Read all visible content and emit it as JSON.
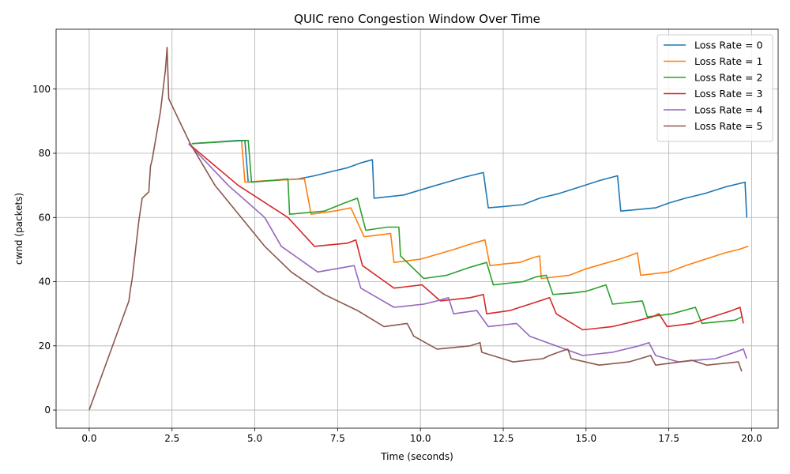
{
  "chart_data": {
    "type": "line",
    "title": "QUIC reno Congestion Window Over Time",
    "xlabel": "Time (seconds)",
    "ylabel": "cwnd (packets)",
    "xlim": [
      -1,
      20.8
    ],
    "ylim": [
      -5.65,
      118.65
    ],
    "xticks": [
      0.0,
      2.5,
      5.0,
      7.5,
      10.0,
      12.5,
      15.0,
      17.5,
      20.0
    ],
    "xtick_labels": [
      "0.0",
      "2.5",
      "5.0",
      "7.5",
      "10.0",
      "12.5",
      "15.0",
      "17.5",
      "20.0"
    ],
    "yticks": [
      0,
      20,
      40,
      60,
      80,
      100
    ],
    "ytick_labels": [
      "0",
      "20",
      "40",
      "60",
      "80",
      "100"
    ],
    "grid": true,
    "legend_position": "top-right",
    "series": [
      {
        "name": "Loss Rate = 0",
        "color": "#1f77b4",
        "points": [
          [
            3.1,
            83
          ],
          [
            4.5,
            84
          ],
          [
            4.7,
            84
          ],
          [
            4.8,
            71
          ],
          [
            5.5,
            71.5
          ],
          [
            6.3,
            72
          ],
          [
            6.8,
            73
          ],
          [
            7.2,
            74
          ],
          [
            7.8,
            75.5
          ],
          [
            8.2,
            77
          ],
          [
            8.55,
            78
          ],
          [
            8.6,
            66
          ],
          [
            9.5,
            67
          ],
          [
            10.3,
            69.5
          ],
          [
            10.8,
            71
          ],
          [
            11.3,
            72.5
          ],
          [
            11.9,
            74
          ],
          [
            12.05,
            63
          ],
          [
            12.6,
            63.5
          ],
          [
            13.1,
            64
          ],
          [
            13.6,
            66
          ],
          [
            14.2,
            67.5
          ],
          [
            14.8,
            69.5
          ],
          [
            15.4,
            71.5
          ],
          [
            15.95,
            73
          ],
          [
            16.05,
            62
          ],
          [
            16.6,
            62.5
          ],
          [
            17.1,
            63
          ],
          [
            17.5,
            64.5
          ],
          [
            18,
            66
          ],
          [
            18.6,
            67.5
          ],
          [
            19.2,
            69.5
          ],
          [
            19.8,
            71
          ],
          [
            19.85,
            60
          ]
        ]
      },
      {
        "name": "Loss Rate = 1",
        "color": "#ff7f0e",
        "points": [
          [
            4.6,
            84
          ],
          [
            4.7,
            71
          ],
          [
            5.4,
            71.5
          ],
          [
            6.5,
            72
          ],
          [
            6.7,
            61
          ],
          [
            7.4,
            62
          ],
          [
            7.9,
            63
          ],
          [
            8.3,
            54
          ],
          [
            9.1,
            55
          ],
          [
            9.2,
            46
          ],
          [
            10,
            47
          ],
          [
            10.5,
            48.5
          ],
          [
            11,
            50
          ],
          [
            11.6,
            52
          ],
          [
            11.95,
            53
          ],
          [
            12.1,
            45
          ],
          [
            12.5,
            45.5
          ],
          [
            13,
            46
          ],
          [
            13.4,
            47.5
          ],
          [
            13.6,
            48
          ],
          [
            13.65,
            41
          ],
          [
            14.5,
            42
          ],
          [
            15,
            44
          ],
          [
            15.5,
            45.5
          ],
          [
            16,
            47
          ],
          [
            16.3,
            48
          ],
          [
            16.55,
            49
          ],
          [
            16.65,
            42
          ],
          [
            17.5,
            43
          ],
          [
            18,
            45
          ],
          [
            18.6,
            47
          ],
          [
            19.2,
            49
          ],
          [
            19.6,
            50
          ],
          [
            19.9,
            51
          ]
        ]
      },
      {
        "name": "Loss Rate = 2",
        "color": "#2ca02c",
        "points": [
          [
            3.1,
            83
          ],
          [
            4.7,
            84
          ],
          [
            4.8,
            84
          ],
          [
            4.9,
            71
          ],
          [
            5.5,
            71.5
          ],
          [
            6,
            72
          ],
          [
            6.05,
            61
          ],
          [
            7.1,
            62
          ],
          [
            7.7,
            64.5
          ],
          [
            8.1,
            66
          ],
          [
            8.35,
            56
          ],
          [
            9,
            57
          ],
          [
            9.35,
            57
          ],
          [
            9.4,
            48
          ],
          [
            9.7,
            45
          ],
          [
            10.1,
            41
          ],
          [
            10.8,
            42
          ],
          [
            11.5,
            44.5
          ],
          [
            12,
            46
          ],
          [
            12.2,
            39
          ],
          [
            13.1,
            40
          ],
          [
            13.5,
            41.5
          ],
          [
            13.8,
            42
          ],
          [
            14,
            36
          ],
          [
            14.6,
            36.5
          ],
          [
            15,
            37
          ],
          [
            15.3,
            38
          ],
          [
            15.6,
            39
          ],
          [
            15.8,
            33
          ],
          [
            16.7,
            34
          ],
          [
            16.85,
            29
          ],
          [
            17.6,
            30
          ],
          [
            18.3,
            32
          ],
          [
            18.5,
            27
          ],
          [
            19.5,
            28
          ],
          [
            19.7,
            29
          ]
        ]
      },
      {
        "name": "Loss Rate = 3",
        "color": "#d62728",
        "points": [
          [
            3,
            83
          ],
          [
            4.5,
            70
          ],
          [
            6,
            60
          ],
          [
            6.8,
            51
          ],
          [
            7.8,
            52
          ],
          [
            8.05,
            53
          ],
          [
            8.25,
            45
          ],
          [
            9,
            39.5
          ],
          [
            9.2,
            38
          ],
          [
            10.05,
            39
          ],
          [
            10.6,
            34
          ],
          [
            11.5,
            35
          ],
          [
            11.9,
            36
          ],
          [
            12,
            30
          ],
          [
            12.7,
            31
          ],
          [
            13,
            32
          ],
          [
            13.3,
            33
          ],
          [
            13.6,
            34
          ],
          [
            13.9,
            35
          ],
          [
            14.1,
            30
          ],
          [
            14.9,
            25
          ],
          [
            15.8,
            26
          ],
          [
            16.6,
            28
          ],
          [
            17,
            29
          ],
          [
            17.2,
            30
          ],
          [
            17.45,
            26
          ],
          [
            18.2,
            27
          ],
          [
            18.8,
            29
          ],
          [
            19.1,
            30
          ],
          [
            19.4,
            31
          ],
          [
            19.65,
            32
          ],
          [
            19.75,
            27
          ]
        ]
      },
      {
        "name": "Loss Rate = 4",
        "color": "#9467bd",
        "points": [
          [
            3,
            83
          ],
          [
            4.2,
            70
          ],
          [
            5.3,
            60
          ],
          [
            5.8,
            51
          ],
          [
            6.9,
            43
          ],
          [
            8,
            45
          ],
          [
            8.2,
            38
          ],
          [
            9.2,
            32
          ],
          [
            10.1,
            33
          ],
          [
            10.5,
            34
          ],
          [
            10.85,
            35
          ],
          [
            11,
            30
          ],
          [
            11.7,
            31
          ],
          [
            12.05,
            26
          ],
          [
            12.9,
            27
          ],
          [
            13.3,
            23
          ],
          [
            14.9,
            17
          ],
          [
            15.8,
            18
          ],
          [
            16.6,
            20
          ],
          [
            16.9,
            21
          ],
          [
            17.1,
            17
          ],
          [
            17.8,
            15
          ],
          [
            18.3,
            15.5
          ],
          [
            18.9,
            16
          ],
          [
            19.2,
            17
          ],
          [
            19.5,
            18
          ],
          [
            19.75,
            19
          ],
          [
            19.85,
            16
          ]
        ]
      },
      {
        "name": "Loss Rate = 5",
        "color": "#8c564b",
        "points": [
          [
            0,
            0
          ],
          [
            1.2,
            34
          ],
          [
            1.25,
            38
          ],
          [
            1.3,
            41
          ],
          [
            1.5,
            59
          ],
          [
            1.6,
            66
          ],
          [
            1.8,
            68
          ],
          [
            1.85,
            76
          ],
          [
            1.9,
            78
          ],
          [
            2.15,
            93
          ],
          [
            2.3,
            106
          ],
          [
            2.35,
            113
          ],
          [
            2.4,
            97
          ],
          [
            3.05,
            83
          ],
          [
            3.8,
            70
          ],
          [
            5.3,
            51
          ],
          [
            6.1,
            43
          ],
          [
            7.1,
            36
          ],
          [
            8.1,
            31
          ],
          [
            8.9,
            26
          ],
          [
            9.6,
            27
          ],
          [
            9.8,
            23
          ],
          [
            10.5,
            19
          ],
          [
            11.5,
            20
          ],
          [
            11.8,
            21
          ],
          [
            11.85,
            18
          ],
          [
            12.8,
            15
          ],
          [
            13.7,
            16
          ],
          [
            13.9,
            17
          ],
          [
            14.3,
            18.5
          ],
          [
            14.45,
            19
          ],
          [
            14.55,
            16
          ],
          [
            15.4,
            14
          ],
          [
            16.3,
            15
          ],
          [
            16.95,
            17
          ],
          [
            17.1,
            14
          ],
          [
            18.2,
            15.5
          ],
          [
            18.65,
            14
          ],
          [
            19.6,
            15
          ],
          [
            19.7,
            12
          ]
        ]
      }
    ]
  }
}
